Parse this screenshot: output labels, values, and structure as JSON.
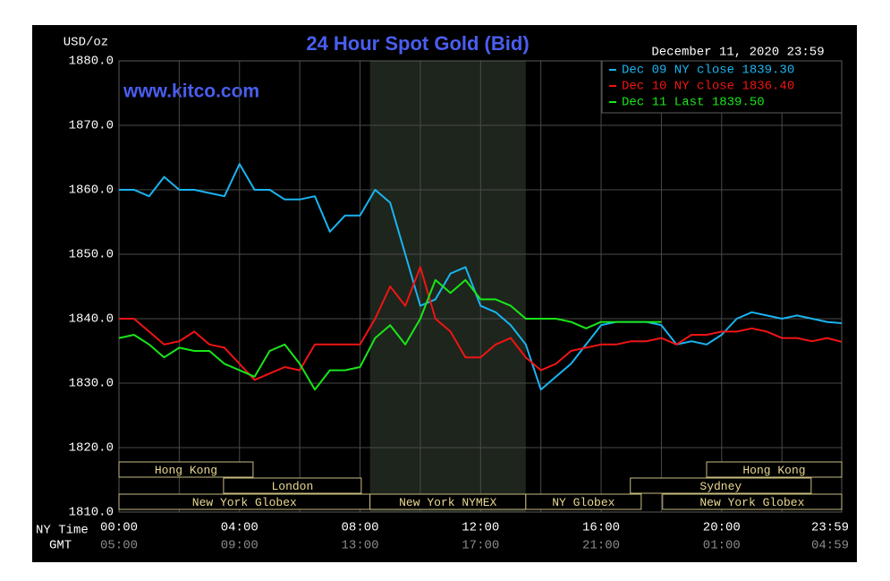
{
  "chart_data": {
    "type": "line",
    "title": "24 Hour Spot Gold (Bid)",
    "watermark": "www.kitco.com",
    "timestamp": "December 11, 2020 23:59",
    "y_label": "USD/oz",
    "x_label": "NY Time",
    "x2_label": "GMT",
    "x": [
      0,
      0.5,
      1,
      1.5,
      2,
      2.5,
      3,
      3.5,
      4,
      4.5,
      5,
      5.5,
      6,
      6.5,
      7,
      7.5,
      8,
      8.5,
      9,
      9.5,
      10,
      10.5,
      11,
      11.5,
      12,
      12.5,
      13,
      13.5,
      14,
      14.5,
      15,
      15.5,
      16,
      16.5,
      17,
      17.5,
      18,
      18.5,
      19,
      19.5,
      20,
      20.5,
      21,
      21.5,
      22,
      22.5,
      23,
      23.5,
      23.983
    ],
    "series": [
      {
        "name": "Dec 09 NY close 1839.30",
        "color": "#19b4f0",
        "values": [
          1860,
          1860,
          1859,
          1862,
          1860,
          1860,
          1859.5,
          1859,
          1864,
          1860,
          1860,
          1858.5,
          1858.5,
          1859,
          1853.5,
          1856,
          1856,
          1860,
          1858,
          1850,
          1842,
          1843,
          1847,
          1848,
          1842,
          1841,
          1839,
          1836,
          1829,
          1831,
          1833,
          1836,
          1839,
          1839.5,
          1839.5,
          1839.5,
          1839,
          1836,
          1836.5,
          1836,
          1837.5,
          1840,
          1841,
          1840.5,
          1840,
          1840.5,
          1840,
          1839.5,
          1839.3
        ]
      },
      {
        "name": "Dec 10 NY close 1836.40",
        "color": "#f01414",
        "values": [
          1840,
          1840,
          1838,
          1836,
          1836.5,
          1838,
          1836,
          1835.5,
          1833,
          1830.5,
          1831.5,
          1832.5,
          1832,
          1836,
          1836,
          1836,
          1836,
          1840,
          1845,
          1842,
          1848,
          1840,
          1838,
          1834,
          1834,
          1836,
          1837,
          1834,
          1832,
          1833,
          1835,
          1835.5,
          1836,
          1836,
          1836.5,
          1836.5,
          1837,
          1836,
          1837.5,
          1837.5,
          1838,
          1838,
          1838.5,
          1838,
          1837,
          1837,
          1836.5,
          1837,
          1836.4
        ]
      },
      {
        "name": "Dec 11 Last 1839.50",
        "color": "#19e619",
        "values": [
          1837,
          1837.5,
          1836,
          1834,
          1835.5,
          1835,
          1835,
          1833,
          1832,
          1831,
          1835,
          1836,
          1833,
          1829,
          1832,
          1832,
          1832.5,
          1837,
          1839,
          1836,
          1840,
          1846,
          1844,
          1846,
          1843,
          1843,
          1842,
          1840,
          1840,
          1840,
          1839.5,
          1838.5,
          1839.5,
          1839.5,
          1839.5,
          1839.5,
          1839.5,
          null,
          null,
          null,
          null,
          null,
          null,
          null,
          null,
          null,
          null,
          null,
          null
        ]
      }
    ],
    "xlim": [
      0,
      23.983
    ],
    "ylim": [
      1810,
      1880
    ],
    "xticks": [
      {
        "value": 0,
        "label": "00:00"
      },
      {
        "value": 4,
        "label": "04:00"
      },
      {
        "value": 8,
        "label": "08:00"
      },
      {
        "value": 12,
        "label": "12:00"
      },
      {
        "value": 16,
        "label": "16:00"
      },
      {
        "value": 20,
        "label": "20:00"
      },
      {
        "value": 23.983,
        "label": "23:59"
      }
    ],
    "x2ticks": [
      {
        "value": 0,
        "label": "05:00"
      },
      {
        "value": 4,
        "label": "09:00"
      },
      {
        "value": 8,
        "label": "13:00"
      },
      {
        "value": 12,
        "label": "17:00"
      },
      {
        "value": 16,
        "label": "21:00"
      },
      {
        "value": 20,
        "label": "01:00"
      },
      {
        "value": 23.983,
        "label": "04:59"
      }
    ],
    "xgrid": [
      2,
      6,
      10,
      14,
      18,
      22
    ],
    "yticks": [
      {
        "value": 1810,
        "label": "1810.0"
      },
      {
        "value": 1820,
        "label": "1820.0"
      },
      {
        "value": 1830,
        "label": "1830.0"
      },
      {
        "value": 1840,
        "label": "1840.0"
      },
      {
        "value": 1850,
        "label": "1850.0"
      },
      {
        "value": 1860,
        "label": "1860.0"
      },
      {
        "value": 1870,
        "label": "1870.0"
      },
      {
        "value": 1880,
        "label": "1880.0"
      }
    ],
    "grid": true,
    "legend": "top-right",
    "highlight": [
      8.33,
      13.5
    ],
    "sessions": [
      {
        "label": "Hong Kong",
        "start": 0,
        "end": 4.45,
        "row": 0
      },
      {
        "label": "Hong Kong",
        "start": 19.5,
        "end": 23.983,
        "row": 0
      },
      {
        "label": "London",
        "start": 3.47,
        "end": 8.04,
        "row": 1
      },
      {
        "label": "Sydney",
        "start": 16.97,
        "end": 22.97,
        "row": 1
      },
      {
        "label": "New York Globex",
        "start": 0,
        "end": 8.33,
        "row": 2
      },
      {
        "label": "New York NYMEX",
        "start": 8.33,
        "end": 13.5,
        "row": 2
      },
      {
        "label": "NY Globex",
        "start": 13.5,
        "end": 17.33,
        "row": 2
      },
      {
        "label": "New York Globex",
        "start": 18.04,
        "end": 23.983,
        "row": 2
      }
    ]
  }
}
